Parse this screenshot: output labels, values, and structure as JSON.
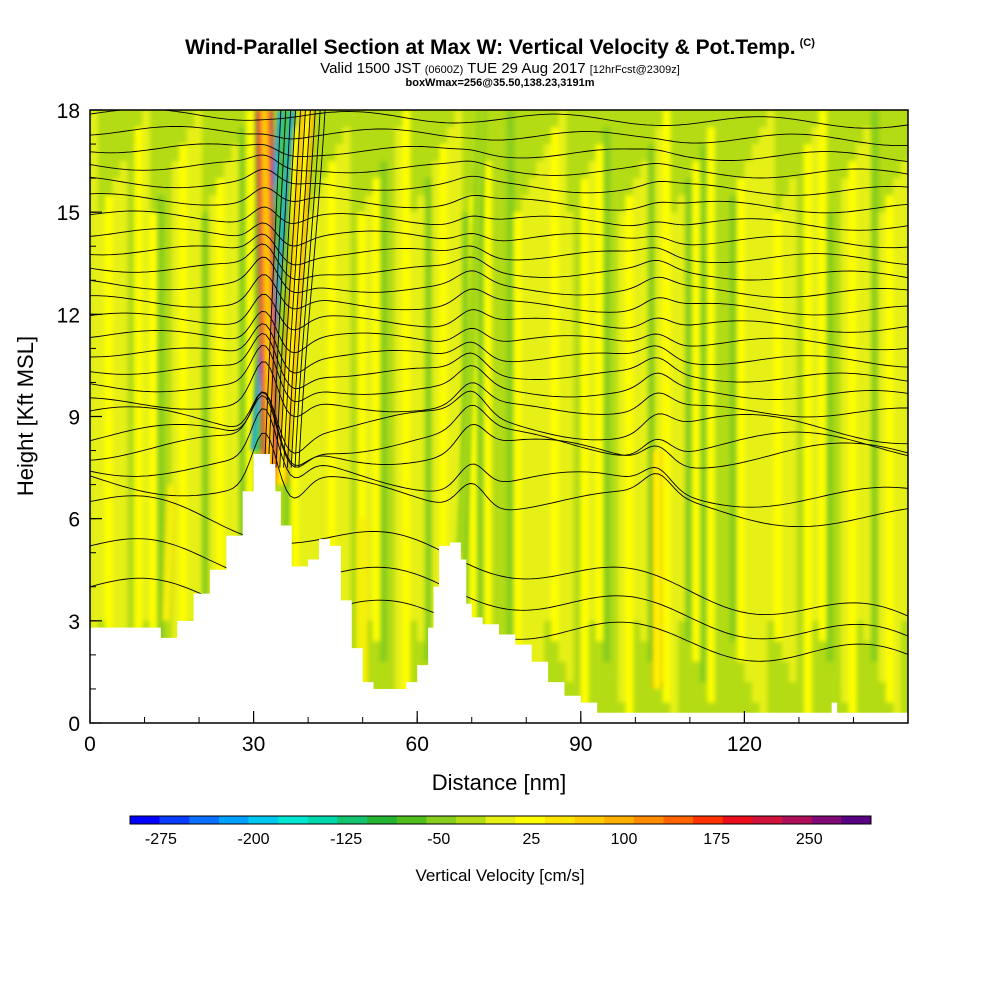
{
  "header": {
    "title": "Wind-Parallel Section at Max W: Vertical Velocity & Pot.Temp.",
    "copyright": "(C)",
    "valid_prefix": "Valid 1500 JST",
    "valid_utc": "(0600Z)",
    "valid_date": "TUE 29 Aug 2017",
    "forecast": "[12hrFcst@2309z]",
    "box_info": "boxWmax=256@35.50,138.23,3191m"
  },
  "chart_data": {
    "type": "heatmap",
    "title": "Wind-Parallel Section at Max W: Vertical Velocity & Pot.Temp.",
    "xlabel": "Distance [nm]",
    "ylabel": "Height [Kft MSL]",
    "xlim": [
      0,
      150
    ],
    "ylim": [
      0,
      18
    ],
    "x_ticks": [
      0,
      30,
      60,
      90,
      120
    ],
    "y_ticks": [
      0,
      3,
      6,
      9,
      12,
      15,
      18
    ],
    "grid": false,
    "terrain": {
      "x": [
        0,
        10,
        13,
        16,
        19,
        22,
        25,
        28,
        30,
        31,
        33,
        34,
        35,
        37,
        40,
        42,
        44,
        46,
        48,
        50,
        52,
        54,
        56,
        58,
        60,
        62,
        63,
        64,
        66,
        68,
        69,
        70,
        72,
        75,
        78,
        81,
        84,
        87,
        90,
        93,
        96,
        99,
        102,
        110,
        120,
        132,
        136,
        137,
        150
      ],
      "height_kft": [
        2.8,
        2.8,
        2.5,
        3.0,
        3.8,
        4.5,
        5.5,
        6.8,
        7.9,
        7.9,
        7.6,
        6.8,
        5.8,
        4.6,
        4.8,
        5.4,
        5.2,
        3.6,
        2.2,
        1.2,
        1.0,
        1.0,
        1.0,
        1.2,
        1.7,
        2.8,
        4.0,
        5.2,
        5.3,
        4.8,
        3.5,
        3.1,
        2.9,
        2.6,
        2.3,
        1.8,
        1.2,
        0.8,
        0.6,
        0.3,
        0.3,
        0.3,
        0.3,
        0.3,
        0.3,
        0.3,
        0.6,
        0.3,
        0.3
      ]
    },
    "vertical_velocity_features": [
      {
        "x_base": 31,
        "y_base": 8,
        "x_top": 36,
        "y_top": 18,
        "w_cm_s": -250
      },
      {
        "x_base": 33,
        "y_base": 7,
        "x_top": 32,
        "y_top": 18,
        "w_cm_s": 250
      },
      {
        "x_base": 35,
        "y_base": 7,
        "x_top": 40,
        "y_top": 18,
        "w_cm_s": 125
      },
      {
        "x_base": 68,
        "y_base": 5,
        "x_top": 72,
        "y_top": 18,
        "w_cm_s": -50
      },
      {
        "x_base": 50,
        "y_base": 1,
        "x_top": 50,
        "y_top": 6,
        "w_cm_s": 75
      },
      {
        "x_base": 104,
        "y_base": 1,
        "x_top": 104,
        "y_top": 8,
        "w_cm_s": 100
      },
      {
        "x_base": 14,
        "y_base": 3,
        "x_top": 15,
        "y_top": 7,
        "w_cm_s": 75
      }
    ],
    "potential_temperature_contours_kft": [
      4.0,
      5.2,
      6.5,
      7.2,
      7.7,
      8.1,
      8.4,
      8.9,
      9.4,
      9.9,
      10.4,
      10.9,
      11.4,
      11.9,
      12.4,
      12.9,
      13.4,
      13.9,
      14.4,
      14.9,
      15.4,
      15.9,
      16.4,
      16.9,
      17.4,
      17.9
    ],
    "colorbar": {
      "title": "Vertical Velocity [cm/s]",
      "labels": [
        "-275",
        "-200",
        "-125",
        "-50",
        "25",
        "100",
        "175",
        "250"
      ],
      "bins": [
        -300,
        -275,
        -250,
        -225,
        -200,
        -175,
        -150,
        -125,
        -100,
        -75,
        -50,
        -25,
        0,
        25,
        50,
        75,
        100,
        125,
        150,
        175,
        200,
        225,
        250,
        275,
        300
      ],
      "colors": [
        "#0000ff",
        "#0a3cff",
        "#0a6eff",
        "#00a0ff",
        "#00c8f0",
        "#00e6d2",
        "#00d7aa",
        "#14c36e",
        "#23b432",
        "#50be1e",
        "#87cd1e",
        "#b4dc14",
        "#e6f014",
        "#ffff00",
        "#ffe600",
        "#ffcd00",
        "#ffaf00",
        "#ff8c00",
        "#ff6400",
        "#ff3200",
        "#ee0f1e",
        "#d2143c",
        "#af0f5a",
        "#820a78",
        "#5a0082"
      ]
    }
  }
}
